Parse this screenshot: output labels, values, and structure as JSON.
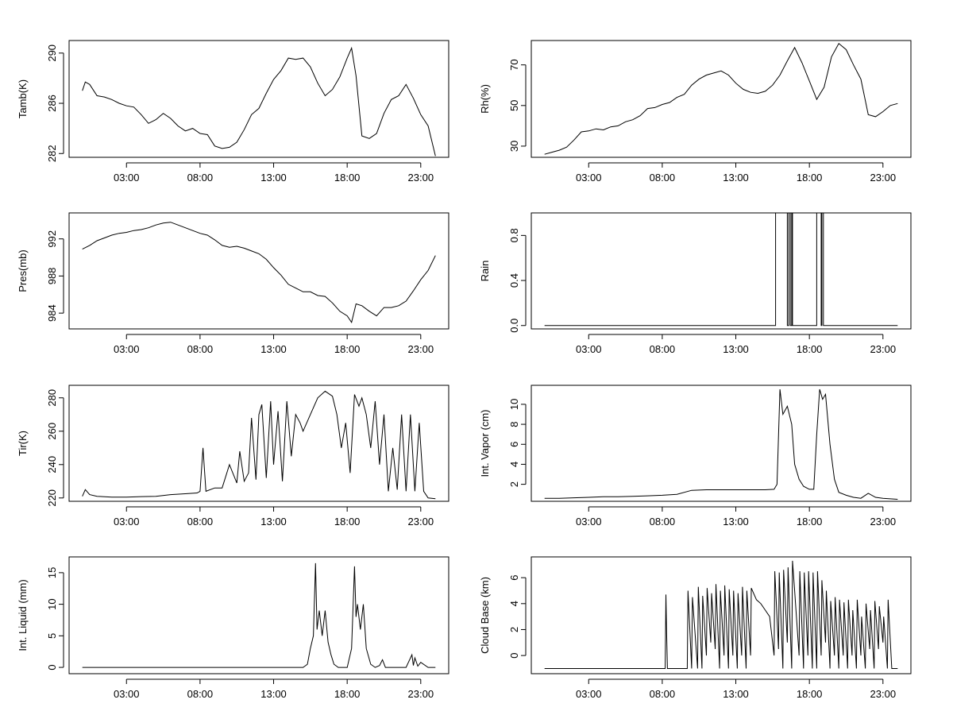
{
  "chart_data": [
    {
      "type": "line",
      "ylabel": "Tamb(K)",
      "ylim": [
        281.7,
        291.0
      ],
      "yticks": [
        282,
        286,
        290
      ],
      "xticks": [
        "03:00",
        "08:00",
        "13:00",
        "18:00",
        "23:00"
      ],
      "x_hours": [
        3,
        8,
        13,
        18,
        23
      ],
      "series": [
        {
          "x": [
            0.0,
            0.2,
            0.5,
            1.0,
            1.5,
            2.0,
            2.5,
            3.0,
            3.5,
            4.0,
            4.5,
            5.0,
            5.5,
            6.0,
            6.5,
            7.0,
            7.5,
            8.0,
            8.5,
            9.0,
            9.5,
            10.0,
            10.5,
            11.0,
            11.5,
            12.0,
            12.5,
            13.0,
            13.5,
            14.0,
            14.5,
            15.0,
            15.5,
            16.0,
            16.5,
            17.0,
            17.5,
            18.0,
            18.3,
            18.6,
            19.0,
            19.5,
            20.0,
            20.5,
            21.0,
            21.5,
            22.0,
            22.5,
            23.0,
            23.5,
            24.0
          ],
          "y": [
            287,
            287.7,
            287.5,
            286.6,
            286.5,
            286.3,
            286.0,
            285.8,
            285.7,
            285.1,
            284.4,
            284.7,
            285.2,
            284.8,
            284.2,
            283.8,
            284.0,
            283.6,
            283.5,
            282.6,
            282.4,
            282.5,
            282.9,
            283.9,
            285.1,
            285.6,
            286.8,
            287.9,
            288.6,
            289.6,
            289.5,
            289.6,
            288.9,
            287.6,
            286.6,
            287.1,
            288.1,
            289.6,
            290.4,
            288.2,
            283.4,
            283.2,
            283.6,
            285.2,
            286.3,
            286.6,
            287.5,
            286.4,
            285.1,
            284.2,
            281.8
          ]
        }
      ]
    },
    {
      "type": "line",
      "ylabel": "Rh(%)",
      "ylim": [
        24.5,
        82.0
      ],
      "yticks": [
        30,
        50,
        70
      ],
      "xticks": [
        "03:00",
        "08:00",
        "13:00",
        "18:00",
        "23:00"
      ],
      "x_hours": [
        3,
        8,
        13,
        18,
        23
      ],
      "series": [
        {
          "x": [
            0.0,
            0.5,
            1.0,
            1.5,
            2.0,
            2.5,
            3.0,
            3.5,
            4.0,
            4.5,
            5.0,
            5.5,
            6.0,
            6.5,
            7.0,
            7.5,
            8.0,
            8.5,
            9.0,
            9.5,
            10.0,
            10.5,
            11.0,
            11.5,
            12.0,
            12.5,
            13.0,
            13.5,
            14.0,
            14.5,
            15.0,
            15.5,
            16.0,
            16.5,
            17.0,
            17.5,
            18.0,
            18.5,
            19.0,
            19.5,
            20.0,
            20.5,
            21.0,
            21.5,
            22.0,
            22.5,
            23.0,
            23.5,
            24.0
          ],
          "y": [
            26,
            27,
            28,
            29.5,
            33,
            37,
            37.5,
            38.5,
            38,
            39.5,
            40,
            42,
            43,
            45,
            48.5,
            49,
            50.5,
            51.5,
            54,
            55.5,
            60,
            63,
            65,
            66,
            67,
            65,
            61,
            58,
            56.5,
            56,
            57,
            60,
            65,
            72,
            78.5,
            71,
            62,
            53,
            59,
            74,
            80.5,
            77.5,
            70,
            63,
            45.5,
            44.5,
            47,
            50,
            51
          ]
        }
      ]
    },
    {
      "type": "line",
      "ylabel": "Pres(mb)",
      "ylim": [
        982.3,
        994.8
      ],
      "yticks": [
        984,
        988,
        992
      ],
      "xticks": [
        "03:00",
        "08:00",
        "13:00",
        "18:00",
        "23:00"
      ],
      "x_hours": [
        3,
        8,
        13,
        18,
        23
      ],
      "series": [
        {
          "x": [
            0.0,
            0.5,
            1.0,
            1.5,
            2.0,
            2.5,
            3.0,
            3.5,
            4.0,
            4.5,
            5.0,
            5.5,
            6.0,
            6.5,
            7.0,
            7.5,
            8.0,
            8.5,
            9.0,
            9.5,
            10.0,
            10.5,
            11.0,
            11.5,
            12.0,
            12.5,
            13.0,
            13.5,
            14.0,
            14.5,
            15.0,
            15.5,
            16.0,
            16.5,
            17.0,
            17.5,
            18.0,
            18.3,
            18.6,
            19.0,
            19.5,
            20.0,
            20.5,
            21.0,
            21.5,
            22.0,
            22.5,
            23.0,
            23.5,
            24.0
          ],
          "y": [
            990.9,
            991.3,
            991.8,
            992.1,
            992.4,
            992.6,
            992.7,
            992.9,
            993.0,
            993.2,
            993.5,
            993.7,
            993.8,
            993.5,
            993.2,
            992.9,
            992.6,
            992.4,
            991.9,
            991.3,
            991.1,
            991.2,
            991.0,
            990.7,
            990.4,
            989.8,
            988.9,
            988.1,
            987.1,
            986.7,
            986.3,
            986.3,
            985.9,
            985.8,
            985.1,
            984.2,
            983.7,
            983.0,
            985.0,
            984.8,
            984.2,
            983.7,
            984.6,
            984.6,
            984.8,
            985.3,
            986.4,
            987.6,
            988.6,
            990.2
          ]
        }
      ]
    },
    {
      "type": "line",
      "ylabel": "Rain",
      "ylim": [
        -0.03,
        1.0
      ],
      "yticks": [
        0.0,
        0.4,
        0.8
      ],
      "ytick_labels": [
        "0.0",
        "0.4",
        "0.8"
      ],
      "xticks": [
        "03:00",
        "08:00",
        "13:00",
        "18:00",
        "23:00"
      ],
      "x_hours": [
        3,
        8,
        13,
        18,
        23
      ],
      "series": [
        {
          "x": [
            0.0,
            15.7,
            15.7,
            16.5,
            16.5,
            16.6,
            16.6,
            16.7,
            16.7,
            16.8,
            16.8,
            16.85,
            16.85,
            18.5,
            18.5,
            18.8,
            18.8,
            18.85,
            18.85,
            18.95,
            18.95,
            19.0,
            19.0,
            24.0
          ],
          "y": [
            0,
            0,
            1,
            1,
            0,
            0,
            1,
            1,
            0,
            0,
            1,
            1,
            0,
            0,
            1,
            1,
            0,
            0,
            1,
            1,
            0,
            0,
            0,
            0
          ]
        }
      ]
    },
    {
      "type": "line",
      "ylabel": "Tir(K)",
      "ylim": [
        218.0,
        287.5
      ],
      "yticks": [
        220,
        240,
        260,
        280
      ],
      "xticks": [
        "03:00",
        "08:00",
        "13:00",
        "18:00",
        "23:00"
      ],
      "x_hours": [
        3,
        8,
        13,
        18,
        23
      ],
      "series": [
        {
          "x": [
            0.0,
            0.2,
            0.5,
            1.0,
            2.0,
            3.0,
            4.0,
            5.0,
            6.0,
            7.0,
            7.8,
            8.0,
            8.2,
            8.4,
            9.0,
            9.5,
            10.0,
            10.5,
            10.7,
            11.0,
            11.3,
            11.5,
            11.8,
            12.0,
            12.2,
            12.5,
            12.8,
            13.0,
            13.3,
            13.6,
            13.9,
            14.2,
            14.5,
            14.8,
            15.0,
            15.5,
            16.0,
            16.5,
            17.0,
            17.3,
            17.6,
            17.9,
            18.2,
            18.5,
            18.8,
            19.0,
            19.3,
            19.6,
            19.9,
            20.2,
            20.5,
            20.8,
            21.1,
            21.4,
            21.7,
            22.0,
            22.3,
            22.6,
            22.9,
            23.2,
            23.5,
            24.0
          ],
          "y": [
            221,
            225,
            222,
            221,
            220.5,
            220.5,
            220.8,
            221,
            222,
            222.5,
            223,
            224,
            250,
            224,
            226,
            226,
            240,
            229,
            248,
            230,
            235,
            268,
            231,
            270,
            276,
            232,
            278,
            240,
            272,
            230,
            278,
            245,
            270,
            265,
            260,
            270,
            280,
            284,
            281,
            270,
            250,
            265,
            235,
            282,
            275,
            280,
            270,
            250,
            278,
            240,
            270,
            224,
            250,
            225,
            270,
            224,
            270,
            224,
            265,
            224,
            220,
            219.5
          ]
        }
      ]
    },
    {
      "type": "line",
      "ylabel": "Int. Vapor (cm)",
      "ylim": [
        0.3,
        11.9
      ],
      "yticks": [
        2,
        4,
        6,
        8,
        10
      ],
      "xticks": [
        "03:00",
        "08:00",
        "13:00",
        "18:00",
        "23:00"
      ],
      "x_hours": [
        3,
        8,
        13,
        18,
        23
      ],
      "series": [
        {
          "x": [
            0.0,
            1.0,
            2.0,
            3.0,
            4.0,
            5.0,
            6.0,
            7.0,
            8.0,
            9.0,
            10.0,
            11.0,
            12.0,
            13.0,
            14.0,
            15.0,
            15.6,
            15.8,
            16.0,
            16.2,
            16.5,
            16.8,
            17.0,
            17.3,
            17.6,
            18.0,
            18.3,
            18.5,
            18.7,
            18.9,
            19.1,
            19.4,
            19.7,
            20.0,
            20.5,
            21.0,
            21.5,
            22.0,
            22.5,
            23.0,
            24.0
          ],
          "y": [
            0.6,
            0.6,
            0.65,
            0.7,
            0.75,
            0.75,
            0.8,
            0.85,
            0.9,
            1.0,
            1.4,
            1.45,
            1.45,
            1.45,
            1.45,
            1.45,
            1.5,
            2.0,
            11.5,
            9.0,
            9.8,
            8.0,
            4.0,
            2.5,
            1.8,
            1.5,
            1.5,
            7.0,
            11.5,
            10.5,
            11.0,
            6.0,
            2.5,
            1.2,
            0.9,
            0.7,
            0.6,
            1.1,
            0.7,
            0.6,
            0.5
          ]
        }
      ]
    },
    {
      "type": "line",
      "ylabel": "Int. Liquid (mm)",
      "ylim": [
        -1.0,
        17.5
      ],
      "yticks": [
        0,
        5,
        10,
        15
      ],
      "xticks": [
        "03:00",
        "08:00",
        "13:00",
        "18:00",
        "23:00"
      ],
      "x_hours": [
        3,
        8,
        13,
        18,
        23
      ],
      "series": [
        {
          "x": [
            0.0,
            2.0,
            4.0,
            6.0,
            8.0,
            10.0,
            12.0,
            14.0,
            15.0,
            15.3,
            15.5,
            15.7,
            15.85,
            15.95,
            16.1,
            16.3,
            16.5,
            16.7,
            16.9,
            17.1,
            17.4,
            17.7,
            18.0,
            18.3,
            18.5,
            18.6,
            18.7,
            18.9,
            19.1,
            19.3,
            19.6,
            19.9,
            20.2,
            20.4,
            20.6,
            21.0,
            22.0,
            22.4,
            22.5,
            22.6,
            22.8,
            23.0,
            23.5,
            24.0
          ],
          "y": [
            0,
            0,
            0,
            0,
            0,
            0,
            0,
            0,
            0,
            0.5,
            3,
            5,
            16.5,
            6,
            9,
            5,
            9,
            4,
            2,
            0.5,
            0,
            0,
            0,
            3,
            16,
            8,
            10,
            6,
            10,
            3,
            0.5,
            0,
            0.3,
            1.2,
            0,
            0,
            0,
            2,
            0.3,
            1.5,
            0.2,
            0.8,
            0,
            0
          ]
        }
      ]
    },
    {
      "type": "line",
      "ylabel": "Cloud Base (km)",
      "ylim": [
        -1.4,
        7.6
      ],
      "yticks": [
        0,
        2,
        4,
        6
      ],
      "xticks": [
        "03:00",
        "08:00",
        "13:00",
        "18:00",
        "23:00"
      ],
      "x_hours": [
        3,
        8,
        13,
        18,
        23
      ],
      "series": [
        {
          "x": [
            0.0,
            4.0,
            8.0,
            8.2,
            8.25,
            8.3,
            8.35,
            9.0,
            9.5,
            9.7,
            9.75,
            10.0,
            10.05,
            10.4,
            10.45,
            10.7,
            10.75,
            11.0,
            11.05,
            11.3,
            11.35,
            11.6,
            11.65,
            11.9,
            11.95,
            12.2,
            12.25,
            12.5,
            12.55,
            12.8,
            12.85,
            13.1,
            13.15,
            13.4,
            13.45,
            13.7,
            13.75,
            14.0,
            14.05,
            14.4,
            14.7,
            15.0,
            15.3,
            15.6,
            15.65,
            15.9,
            15.95,
            16.2,
            16.25,
            16.5,
            16.55,
            16.8,
            16.85,
            17.0,
            17.3,
            17.35,
            17.6,
            17.65,
            17.9,
            17.95,
            18.2,
            18.25,
            18.5,
            18.55,
            18.8,
            18.85,
            19.1,
            19.15,
            19.4,
            19.45,
            19.7,
            19.75,
            20.0,
            20.05,
            20.3,
            20.35,
            20.6,
            20.65,
            20.9,
            20.95,
            21.2,
            21.25,
            21.5,
            21.55,
            21.8,
            21.85,
            22.1,
            22.15,
            22.4,
            22.45,
            22.7,
            22.75,
            23.0,
            23.05,
            23.3,
            23.35,
            23.6,
            24.0
          ],
          "y": [
            -1,
            -1,
            -1,
            -1,
            4.7,
            1.7,
            -1,
            -1,
            -1,
            -1,
            5,
            -1,
            4.5,
            -1,
            5.3,
            -1,
            4.6,
            0,
            5.2,
            1,
            4.8,
            0.5,
            5.5,
            -1,
            5,
            0,
            5.4,
            -1,
            5.1,
            0,
            5.0,
            -1,
            4.8,
            0,
            5.3,
            -1,
            5.0,
            0,
            5.2,
            4.3,
            4.0,
            3.5,
            3.0,
            0,
            6.5,
            0.5,
            6.4,
            -1,
            6.6,
            1,
            6.8,
            -1,
            7.3,
            5,
            0,
            6.5,
            -1,
            6.4,
            0,
            6.5,
            -1,
            6.4,
            -1,
            6.5,
            0,
            5.8,
            1,
            5.0,
            -1,
            4.2,
            0,
            4.5,
            -1,
            4.3,
            0,
            4.1,
            -1,
            4.3,
            0,
            3.5,
            -1,
            4.3,
            0,
            3.0,
            -1,
            4.0,
            0.5,
            3.5,
            -1,
            4.2,
            0.5,
            3.8,
            1,
            3.0,
            -1,
            4.3,
            -1,
            -1
          ]
        }
      ]
    }
  ]
}
